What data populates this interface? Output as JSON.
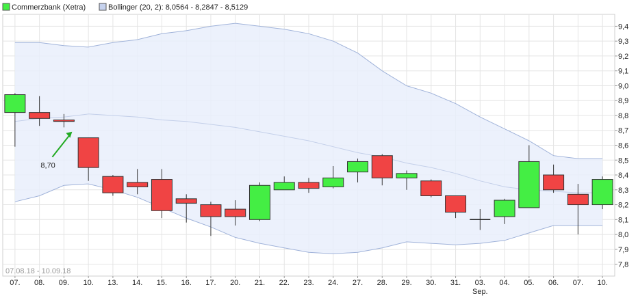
{
  "chart_data": {
    "type": "candlestick",
    "colors": {
      "up": "#44ee44",
      "down": "#f04444",
      "band_fill": "#e9eefb",
      "band_line": "#9fb2d9",
      "middle_line": "#c3cfe9",
      "grid": "#e4e4e4",
      "annotation": "#22aa22"
    },
    "legend": [
      {
        "label": "Commerzbank (Xetra)",
        "color": "#44ee44"
      },
      {
        "label": "Bollinger (20, 2): 8,0564 - 8,2847 - 8,5129",
        "color": "#c6d2ee"
      }
    ],
    "date_range": "07.08.18 - 10.09.18",
    "x_labels": [
      "07.",
      "08.",
      "09.",
      "10.",
      "13.",
      "14.",
      "15.",
      "16.",
      "17.",
      "20.",
      "21.",
      "22.",
      "23.",
      "24.",
      "27.",
      "28.",
      "29.",
      "30.",
      "31.",
      "03.",
      "04.",
      "05.",
      "06.",
      "07.",
      "10."
    ],
    "month_label": {
      "index": 19,
      "text": "Sep."
    },
    "y_ticks": [
      "7,8",
      "7,9",
      "8,0",
      "8,1",
      "8,2",
      "8,3",
      "8,4",
      "8,5",
      "8,6",
      "8,7",
      "8,8",
      "8,9",
      "9,0",
      "9,1",
      "9,2",
      "9,3",
      "9,4"
    ],
    "ylim": [
      7.72,
      9.48
    ],
    "candles": [
      {
        "o": 8.82,
        "h": 8.95,
        "l": 8.59,
        "c": 8.94
      },
      {
        "o": 8.82,
        "h": 8.93,
        "l": 8.73,
        "c": 8.78
      },
      {
        "o": 8.77,
        "h": 8.81,
        "l": 8.72,
        "c": 8.76
      },
      {
        "o": 8.65,
        "h": 8.65,
        "l": 8.36,
        "c": 8.45
      },
      {
        "o": 8.39,
        "h": 8.4,
        "l": 8.26,
        "c": 8.28
      },
      {
        "o": 8.35,
        "h": 8.44,
        "l": 8.27,
        "c": 8.32
      },
      {
        "o": 8.37,
        "h": 8.44,
        "l": 8.11,
        "c": 8.16
      },
      {
        "o": 8.24,
        "h": 8.27,
        "l": 8.08,
        "c": 8.21
      },
      {
        "o": 8.2,
        "h": 8.22,
        "l": 7.99,
        "c": 8.12
      },
      {
        "o": 8.17,
        "h": 8.23,
        "l": 8.06,
        "c": 8.12
      },
      {
        "o": 8.1,
        "h": 8.35,
        "l": 8.09,
        "c": 8.33
      },
      {
        "o": 8.3,
        "h": 8.39,
        "l": 8.3,
        "c": 8.35
      },
      {
        "o": 8.35,
        "h": 8.38,
        "l": 8.28,
        "c": 8.31
      },
      {
        "o": 8.32,
        "h": 8.46,
        "l": 8.31,
        "c": 8.38
      },
      {
        "o": 8.42,
        "h": 8.51,
        "l": 8.35,
        "c": 8.49
      },
      {
        "o": 8.53,
        "h": 8.54,
        "l": 8.33,
        "c": 8.38
      },
      {
        "o": 8.38,
        "h": 8.43,
        "l": 8.3,
        "c": 8.41
      },
      {
        "o": 8.36,
        "h": 8.37,
        "l": 8.25,
        "c": 8.26
      },
      {
        "o": 8.26,
        "h": 8.26,
        "l": 8.11,
        "c": 8.15
      },
      {
        "o": 8.1,
        "h": 8.17,
        "l": 8.03,
        "c": 8.1
      },
      {
        "o": 8.12,
        "h": 8.24,
        "l": 8.07,
        "c": 8.23
      },
      {
        "o": 8.18,
        "h": 8.6,
        "l": 8.18,
        "c": 8.49
      },
      {
        "o": 8.4,
        "h": 8.47,
        "l": 8.28,
        "c": 8.3
      },
      {
        "o": 8.27,
        "h": 8.34,
        "l": 8.0,
        "c": 8.2
      },
      {
        "o": 8.2,
        "h": 8.39,
        "l": 8.17,
        "c": 8.37
      }
    ],
    "bollinger": {
      "upper": [
        9.29,
        9.29,
        9.27,
        9.26,
        9.29,
        9.31,
        9.35,
        9.37,
        9.4,
        9.42,
        9.4,
        9.38,
        9.35,
        9.3,
        9.22,
        9.1,
        9.0,
        8.95,
        8.88,
        8.79,
        8.71,
        8.63,
        8.53,
        8.51,
        8.51
      ],
      "middle": [
        8.76,
        8.78,
        8.79,
        8.81,
        8.8,
        8.79,
        8.77,
        8.76,
        8.74,
        8.72,
        8.69,
        8.66,
        8.63,
        8.59,
        8.55,
        8.52,
        8.48,
        8.45,
        8.41,
        8.36,
        8.32,
        8.3,
        8.29,
        8.28,
        8.28
      ],
      "lower": [
        8.22,
        8.26,
        8.33,
        8.34,
        8.3,
        8.25,
        8.18,
        8.11,
        8.05,
        7.98,
        7.94,
        7.91,
        7.88,
        7.87,
        7.88,
        7.91,
        7.95,
        7.94,
        7.93,
        7.94,
        7.96,
        8.01,
        8.06,
        8.06,
        8.06
      ]
    },
    "annotation": {
      "text": "8,70",
      "index": 2,
      "value": 8.7
    }
  }
}
